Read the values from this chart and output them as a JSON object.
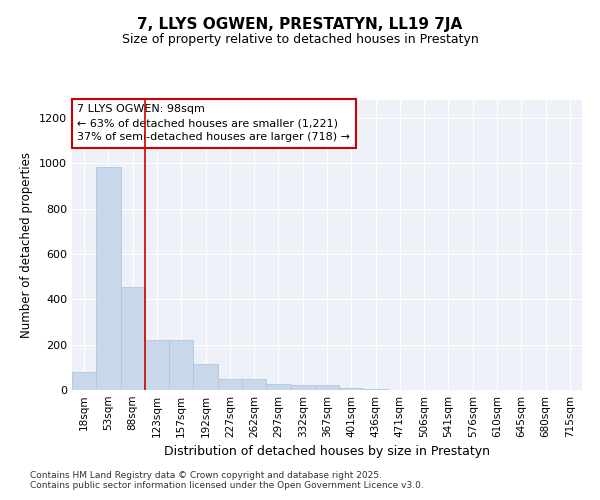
{
  "title": "7, LLYS OGWEN, PRESTATYN, LL19 7JA",
  "subtitle": "Size of property relative to detached houses in Prestatyn",
  "xlabel": "Distribution of detached houses by size in Prestatyn",
  "ylabel": "Number of detached properties",
  "bar_color": "#c8d8ea",
  "bar_edge_color": "#b0c8e0",
  "categories": [
    "18sqm",
    "53sqm",
    "88sqm",
    "123sqm",
    "157sqm",
    "192sqm",
    "227sqm",
    "262sqm",
    "297sqm",
    "332sqm",
    "367sqm",
    "401sqm",
    "436sqm",
    "471sqm",
    "506sqm",
    "541sqm",
    "576sqm",
    "610sqm",
    "645sqm",
    "680sqm",
    "715sqm"
  ],
  "values": [
    80,
    985,
    455,
    220,
    220,
    115,
    50,
    50,
    25,
    20,
    20,
    10,
    5,
    2,
    1,
    0,
    0,
    0,
    0,
    0,
    0
  ],
  "ylim": [
    0,
    1280
  ],
  "yticks": [
    0,
    200,
    400,
    600,
    800,
    1000,
    1200
  ],
  "vline_position": 2.5,
  "vline_color": "#cc0000",
  "annotation_title": "7 LLYS OGWEN: 98sqm",
  "annotation_line1": "← 63% of detached houses are smaller (1,221)",
  "annotation_line2": "37% of semi-detached houses are larger (718) →",
  "annotation_box_color": "#cc0000",
  "background_color": "#eef2f8",
  "grid_color": "#ffffff",
  "footnote_line1": "Contains HM Land Registry data © Crown copyright and database right 2025.",
  "footnote_line2": "Contains public sector information licensed under the Open Government Licence v3.0."
}
